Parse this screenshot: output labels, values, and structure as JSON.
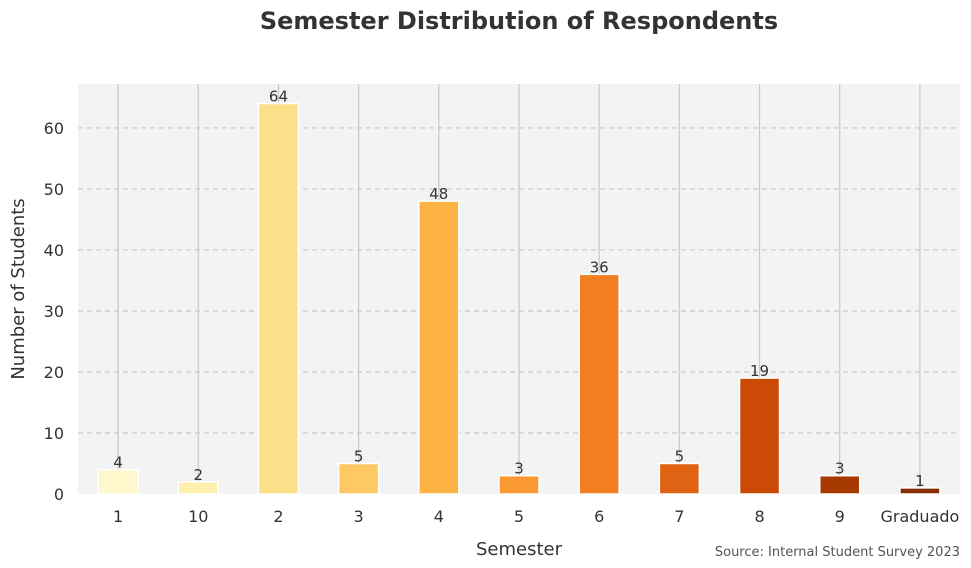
{
  "chart_data": {
    "type": "bar",
    "title": "Semester Distribution of Respondents",
    "xlabel": "Semester",
    "ylabel": "Number of Students",
    "categories": [
      "1",
      "10",
      "2",
      "3",
      "4",
      "5",
      "6",
      "7",
      "8",
      "9",
      "Graduado"
    ],
    "values": [
      4,
      2,
      64,
      5,
      48,
      3,
      36,
      5,
      19,
      3,
      1
    ],
    "bar_colors": [
      "#fff8cc",
      "#fff0b0",
      "#fee08b",
      "#fec962",
      "#fdb244",
      "#fa9932",
      "#f17e20",
      "#e06213",
      "#cb4a05",
      "#a73a03",
      "#852d04"
    ],
    "yticks": [
      0,
      10,
      20,
      30,
      40,
      50,
      60
    ],
    "ylim": [
      0,
      67.2
    ],
    "grid": true,
    "source": "Source: Internal Student Survey 2023",
    "colors": {
      "plot_background": "#f3f3f3",
      "grid": "#c8c8c8",
      "text": "#333333"
    }
  }
}
